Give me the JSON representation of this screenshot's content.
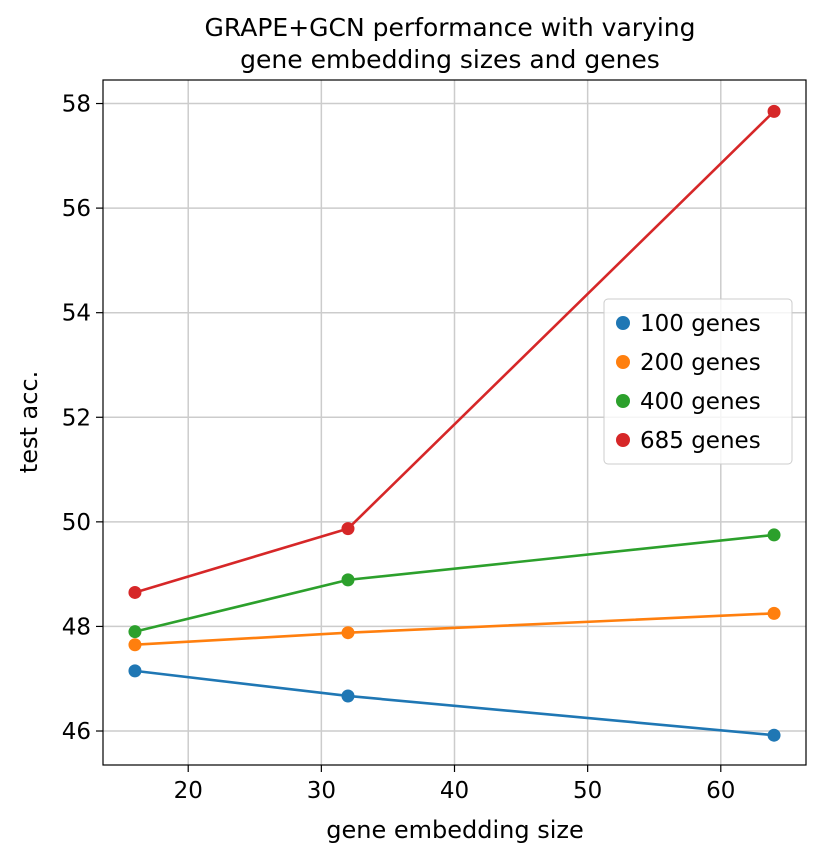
{
  "chart_data": {
    "type": "line",
    "title_lines": [
      "GRAPE+GCN performance with varying",
      "gene embedding sizes and genes"
    ],
    "xlabel": "gene embedding size",
    "ylabel": "test acc.",
    "xlim": [
      13.6,
      66.4
    ],
    "ylim": [
      45.35,
      58.45
    ],
    "x_ticks": [
      20,
      30,
      40,
      50,
      60
    ],
    "y_ticks": [
      46,
      48,
      50,
      52,
      54,
      56,
      58
    ],
    "grid": true,
    "legend_position": "center-right",
    "x": [
      16,
      32,
      64
    ],
    "series": [
      {
        "name": "100 genes",
        "color": "#1f77b4",
        "values": [
          47.15,
          46.67,
          45.92
        ]
      },
      {
        "name": "200 genes",
        "color": "#ff7f0e",
        "values": [
          47.65,
          47.88,
          48.25
        ]
      },
      {
        "name": "400 genes",
        "color": "#2ca02c",
        "values": [
          47.9,
          48.89,
          49.75
        ]
      },
      {
        "name": "685 genes",
        "color": "#d62728",
        "values": [
          48.65,
          49.87,
          57.85
        ]
      }
    ]
  }
}
